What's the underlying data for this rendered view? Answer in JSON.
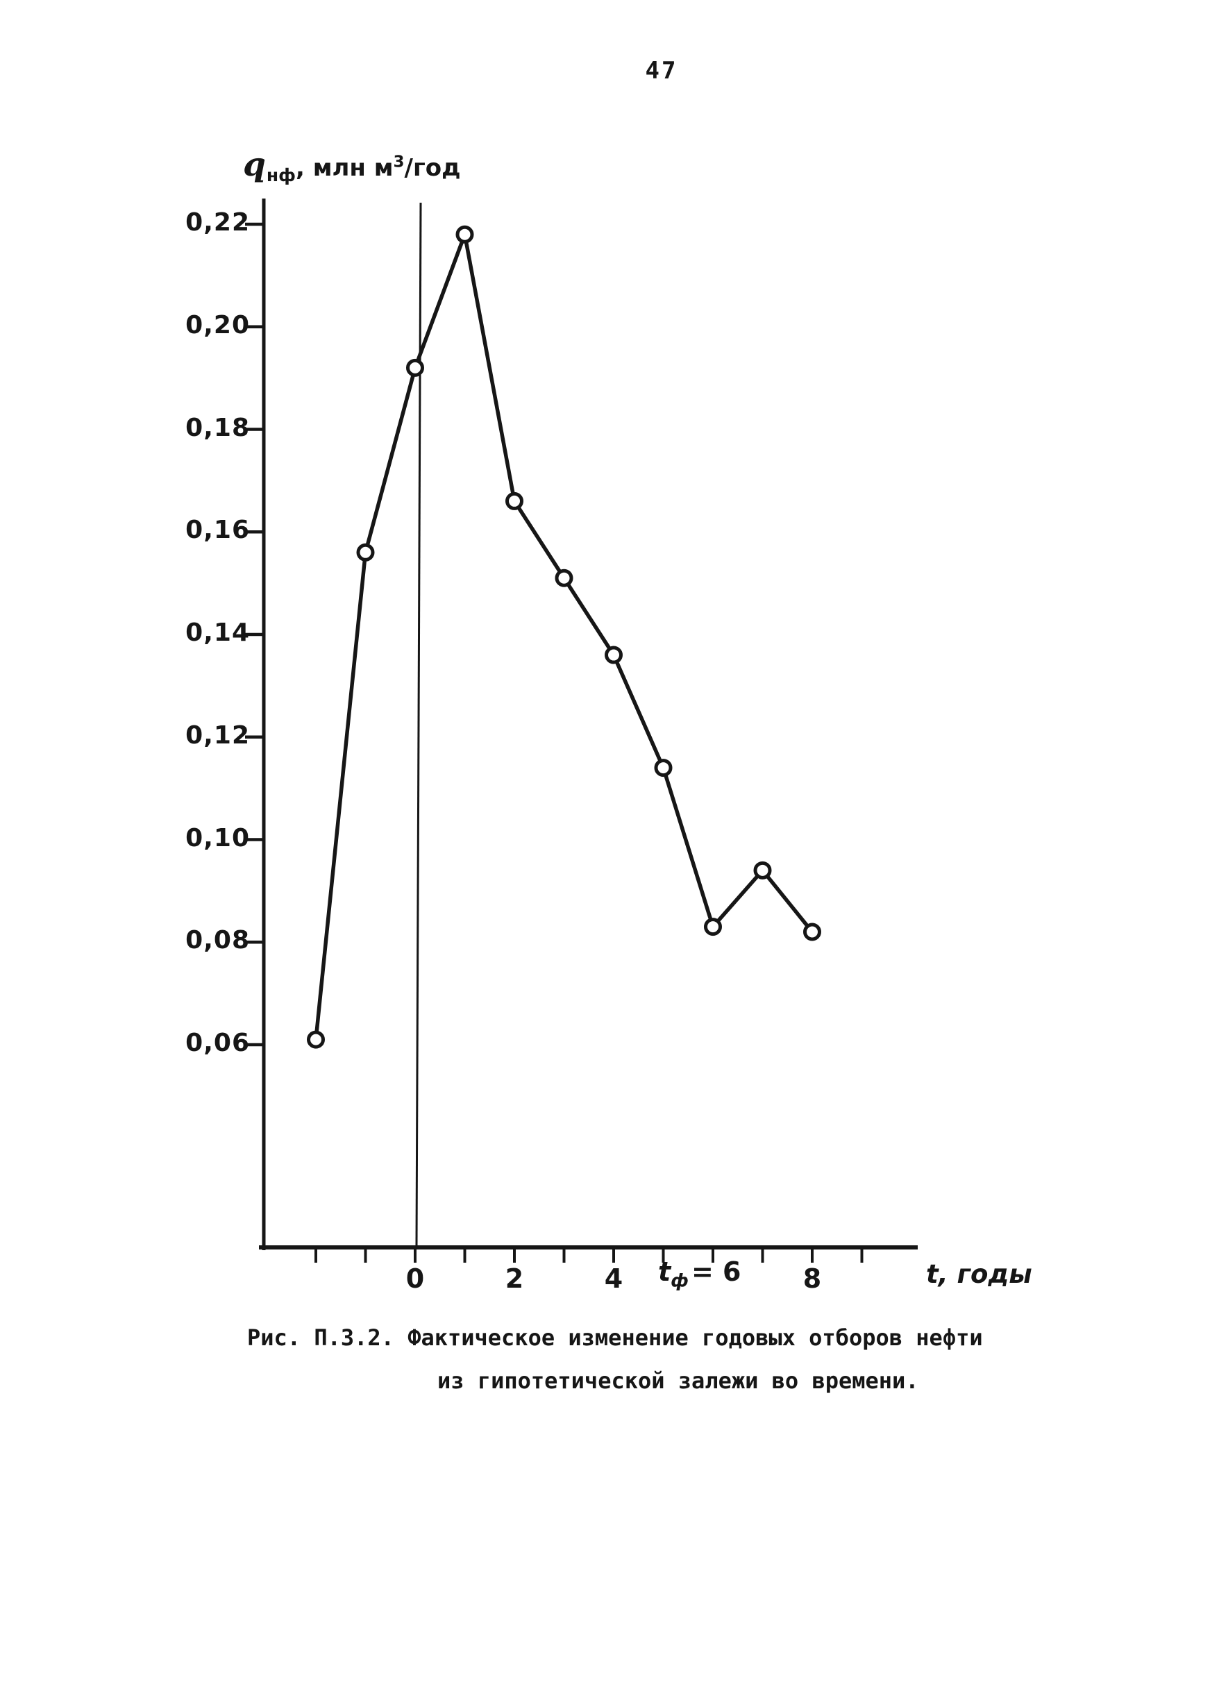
{
  "page": {
    "number": "47",
    "background": "#ffffff",
    "ink_color": "#161616"
  },
  "y_axis": {
    "unit_label": {
      "sym": "q",
      "sub": "нф",
      "mid": ", млн м",
      "sup": "3",
      "end": "/год"
    },
    "ticks": [
      {
        "label": "0,22",
        "value": 0.22
      },
      {
        "label": "0,20",
        "value": 0.2
      },
      {
        "label": "0,18",
        "value": 0.18
      },
      {
        "label": "0,16",
        "value": 0.16
      },
      {
        "label": "0,14",
        "value": 0.14
      },
      {
        "label": "0,12",
        "value": 0.12
      },
      {
        "label": "0,10",
        "value": 0.1
      },
      {
        "label": "0,08",
        "value": 0.08
      },
      {
        "label": "0,06",
        "value": 0.06
      }
    ]
  },
  "x_axis": {
    "title": "t, годы",
    "minor_ticks": [
      -2,
      -1,
      0,
      1,
      2,
      3,
      4,
      5,
      6,
      7,
      8,
      9
    ],
    "labels": [
      {
        "value": 0,
        "label": "0"
      },
      {
        "value": 2,
        "label": "2"
      },
      {
        "value": 4,
        "label": "4"
      },
      {
        "value": 8,
        "label": "8"
      }
    ],
    "special_label": {
      "value": 6,
      "sym": "t",
      "sub": "ф",
      "rest": "= 6"
    }
  },
  "figure": {
    "caption_line1": "Рис. П.3.2. Фактическое изменение годовых отборов нефти",
    "caption_line2": "из гипотетической залежи во времени."
  },
  "chart_data": {
    "type": "line",
    "title": "Фактическое изменение годовых отборов нефти из гипотетической залежи во времени",
    "xlabel": "t, годы",
    "ylabel": "qнф, млн м³/год",
    "series_name": "qнф",
    "x": [
      -2,
      -1,
      0,
      1,
      2,
      3,
      4,
      5,
      6,
      7,
      8
    ],
    "y": [
      0.061,
      0.156,
      0.192,
      0.218,
      0.166,
      0.151,
      0.136,
      0.114,
      0.083,
      0.094,
      0.082
    ],
    "x_tick_labels_shown": [
      "0",
      "2",
      "4",
      "tф= 6",
      "8"
    ],
    "y_tick_labels_shown": [
      "0,22",
      "0,20",
      "0,18",
      "0,16",
      "0,14",
      "0,12",
      "0,10",
      "0,08",
      "0,06"
    ],
    "xlim": [
      -3,
      10
    ],
    "ylim": [
      0.02,
      0.225
    ],
    "y_tick_step": 0.02,
    "grid": false,
    "marker": "open-circle",
    "line_color": "#161616",
    "zero_vertical_guide": true,
    "legend": "none"
  }
}
